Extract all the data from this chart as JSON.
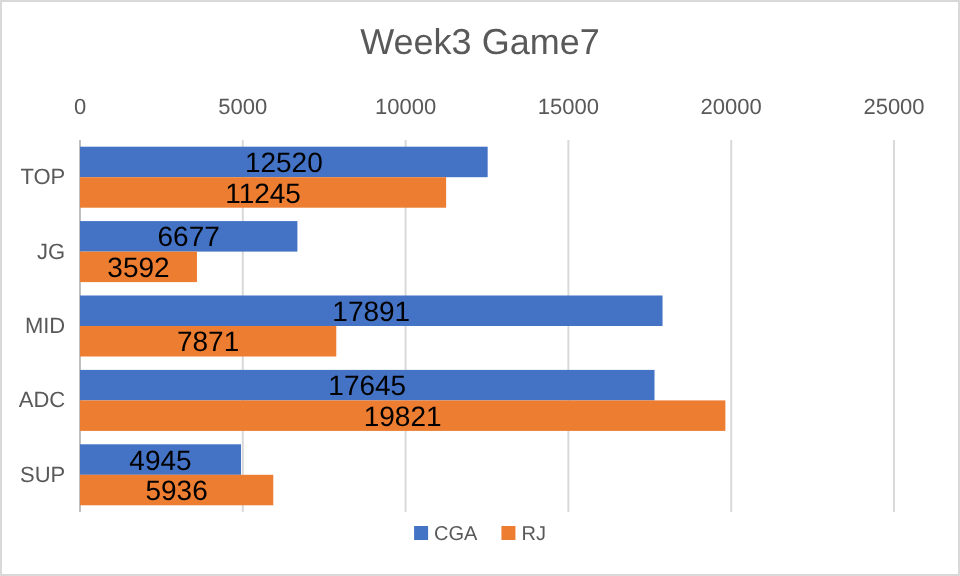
{
  "chart_data": {
    "type": "bar",
    "orientation": "horizontal",
    "title": "Week3 Game7",
    "categories": [
      "TOP",
      "JG",
      "MID",
      "ADC",
      "SUP"
    ],
    "series": [
      {
        "name": "CGA",
        "color": "#4472c4",
        "values": [
          12520,
          6677,
          17891,
          17645,
          4945
        ]
      },
      {
        "name": "RJ",
        "color": "#ed7d31",
        "values": [
          11245,
          3592,
          7871,
          19821,
          5936
        ]
      }
    ],
    "xlim": [
      0,
      25000
    ],
    "xticks": [
      0,
      5000,
      10000,
      15000,
      20000,
      25000
    ],
    "grid": "x",
    "legend": "bottom",
    "data_labels": true
  }
}
